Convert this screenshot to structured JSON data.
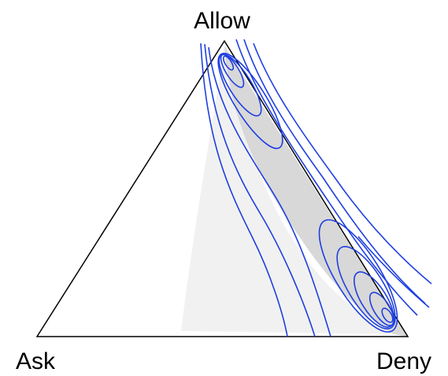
{
  "chart_data": {
    "type": "ternary",
    "vertices": {
      "top": "Allow",
      "left": "Ask",
      "right": "Deny"
    }
  }
}
